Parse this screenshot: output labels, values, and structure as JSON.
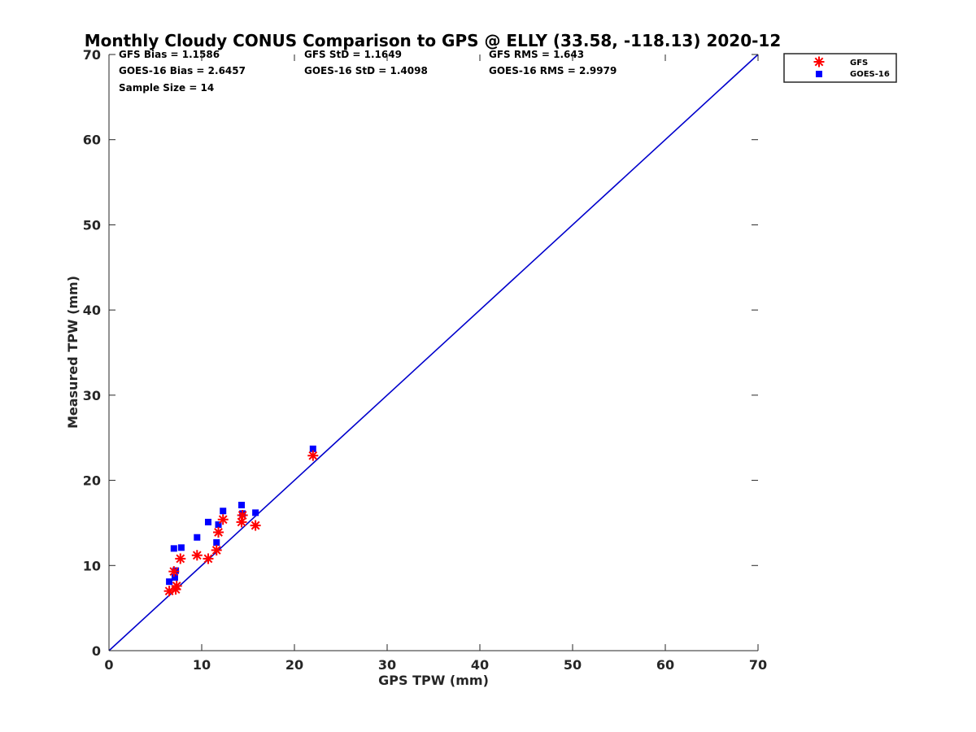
{
  "chart_data": {
    "type": "scatter",
    "title": "Monthly Cloudy CONUS Comparison to GPS @ ELLY (33.58, -118.13) 2020-12",
    "xlabel": "GPS TPW (mm)",
    "ylabel": "Measured TPW (mm)",
    "xlim": [
      0,
      70
    ],
    "ylim": [
      0,
      70
    ],
    "xticks": [
      "0",
      "10",
      "20",
      "30",
      "40",
      "50",
      "60",
      "70"
    ],
    "yticks": [
      "0",
      "10",
      "20",
      "30",
      "40",
      "50",
      "60",
      "70"
    ],
    "grid": false,
    "legend_position": "outside-top-right",
    "stats": [
      [
        "GFS Bias = 1.1586",
        "GFS StD = 1.1649",
        "GFS RMS = 1.643"
      ],
      [
        "GOES-16 Bias = 2.6457",
        "GOES-16 StD = 1.4098",
        "GOES-16 RMS = 2.9979"
      ],
      [
        "Sample Size = 14"
      ]
    ],
    "series": [
      {
        "name": "GFS",
        "marker": "asterisk",
        "color": "#ff0000",
        "x": [
          6.5,
          7.0,
          7.2,
          7.3,
          7.7,
          9.5,
          10.7,
          11.6,
          11.8,
          12.3,
          14.3,
          14.4,
          15.8,
          22.0
        ],
        "y": [
          7.0,
          9.3,
          7.2,
          7.6,
          10.8,
          11.2,
          10.8,
          11.8,
          13.9,
          15.4,
          15.1,
          15.9,
          14.7,
          22.9
        ]
      },
      {
        "name": "GOES-16",
        "marker": "square",
        "color": "#0000ff",
        "x": [
          6.5,
          7.0,
          7.1,
          7.2,
          7.8,
          9.5,
          10.7,
          11.6,
          11.8,
          12.3,
          14.3,
          14.4,
          15.8,
          22.0
        ],
        "y": [
          8.1,
          12.0,
          8.6,
          9.4,
          12.1,
          13.3,
          15.1,
          12.7,
          14.8,
          16.4,
          17.1,
          16.1,
          16.2,
          23.7
        ]
      },
      {
        "type": "line",
        "color": "#0000cc",
        "x": [
          0,
          70
        ],
        "y": [
          0,
          70
        ]
      }
    ]
  }
}
